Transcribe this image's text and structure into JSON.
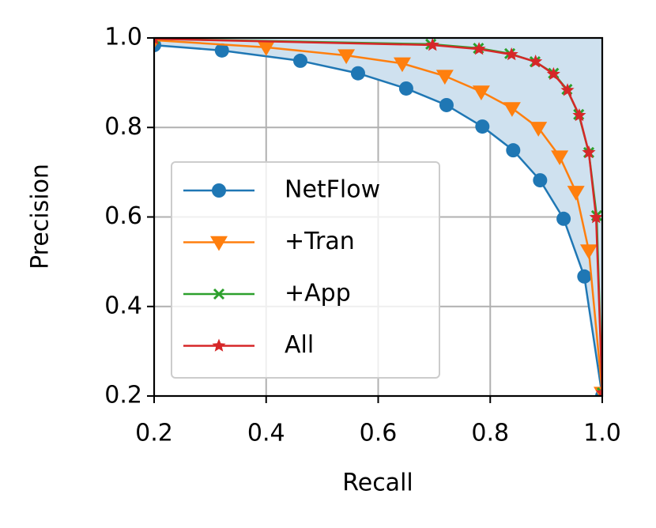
{
  "chart_data": {
    "type": "line",
    "xlabel": "Recall",
    "ylabel": "Precision",
    "xlim": [
      0.2,
      1.0
    ],
    "ylim": [
      0.2,
      1.0
    ],
    "xticks": [
      0.2,
      0.4,
      0.6,
      0.8,
      {
        "value": 1.0,
        "label": "1.0"
      }
    ],
    "yticks": [
      0.2,
      0.4,
      0.6,
      0.8,
      {
        "value": 1.0,
        "label": "1.0"
      }
    ],
    "grid": true,
    "legend": "lower left",
    "fill_series": 0,
    "fill_color": "#cfe1ef",
    "series": [
      {
        "name": "NetFlow",
        "color": "#1f77b4",
        "marker": "circle",
        "x": [
          0.2,
          0.321,
          0.461,
          0.564,
          0.65,
          0.722,
          0.786,
          0.841,
          0.889,
          0.931,
          0.968,
          1.0
        ],
        "values": [
          0.984,
          0.972,
          0.949,
          0.921,
          0.887,
          0.85,
          0.802,
          0.749,
          0.682,
          0.596,
          0.467,
          0.2
        ]
      },
      {
        "name": "+Tran",
        "color": "#ff7f0e",
        "marker": "triangle",
        "x": [
          0.2,
          0.4,
          0.543,
          0.643,
          0.719,
          0.784,
          0.839,
          0.886,
          0.924,
          0.953,
          0.976,
          1.0
        ],
        "values": [
          0.995,
          0.979,
          0.961,
          0.943,
          0.915,
          0.88,
          0.843,
          0.799,
          0.735,
          0.656,
          0.525,
          0.207
        ]
      },
      {
        "name": "+App",
        "color": "#2ca02c",
        "marker": "x",
        "x": [
          0.2,
          0.694,
          0.779,
          0.835,
          0.88,
          0.913,
          0.937,
          0.958,
          0.976,
          0.99,
          1.0
        ],
        "values": [
          0.998,
          0.986,
          0.977,
          0.965,
          0.947,
          0.921,
          0.885,
          0.829,
          0.744,
          0.603,
          0.207
        ]
      },
      {
        "name": "All",
        "color": "#d62728",
        "marker": "star",
        "x": [
          0.2,
          0.697,
          0.78,
          0.838,
          0.881,
          0.913,
          0.938,
          0.959,
          0.976,
          0.989,
          1.0
        ],
        "values": [
          0.998,
          0.984,
          0.975,
          0.963,
          0.947,
          0.919,
          0.883,
          0.827,
          0.744,
          0.599,
          0.207
        ]
      }
    ]
  }
}
